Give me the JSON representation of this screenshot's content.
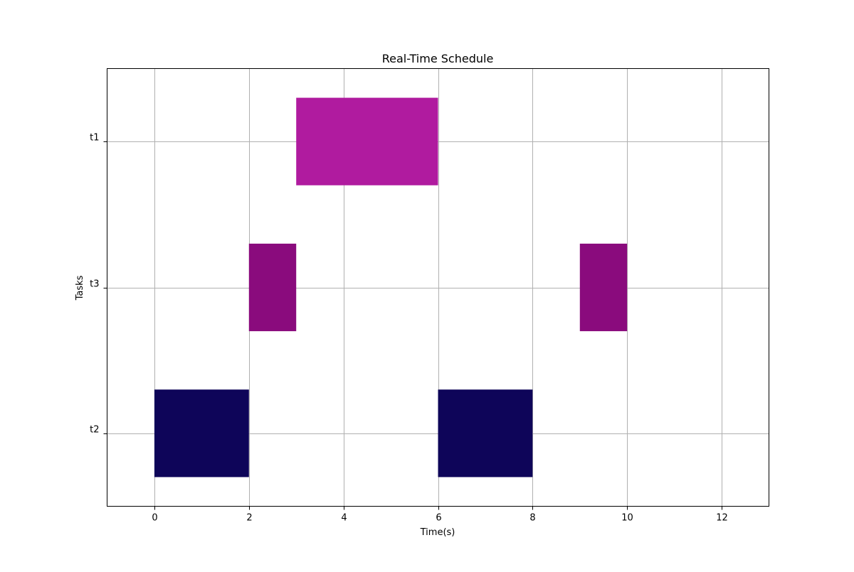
{
  "chart_data": {
    "type": "gantt",
    "title": "Real-Time Schedule",
    "xlabel": "Time(s)",
    "ylabel": "Tasks",
    "xlim": [
      -1,
      13
    ],
    "x_ticks": [
      0,
      2,
      4,
      6,
      8,
      10,
      12
    ],
    "x_tick_labels": [
      "0",
      "2",
      "4",
      "6",
      "8",
      "10",
      "12"
    ],
    "tasks": [
      "t2",
      "t3",
      "t1"
    ],
    "grid": true,
    "bars": [
      {
        "task": "t2",
        "start": 0,
        "end": 2,
        "color": "#0e0559"
      },
      {
        "task": "t3",
        "start": 2,
        "end": 3,
        "color": "#8a0b7d"
      },
      {
        "task": "t1",
        "start": 3,
        "end": 6,
        "color": "#b01b9f"
      },
      {
        "task": "t2",
        "start": 6,
        "end": 8,
        "color": "#0e0559"
      },
      {
        "task": "t3",
        "start": 9,
        "end": 10,
        "color": "#8a0b7d"
      }
    ]
  }
}
